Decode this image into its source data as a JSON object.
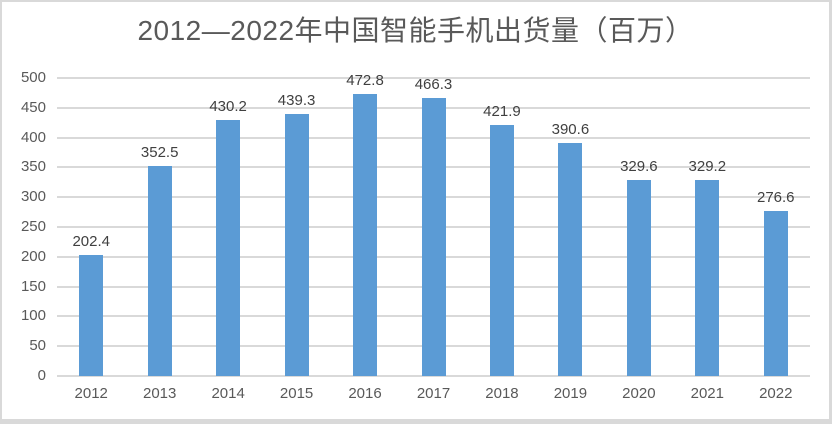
{
  "chart_data": {
    "type": "bar",
    "title": "2012—2022年中国智能手机出货量（百万）",
    "categories": [
      "2012",
      "2013",
      "2014",
      "2015",
      "2016",
      "2017",
      "2018",
      "2019",
      "2020",
      "2021",
      "2022"
    ],
    "values": [
      202.4,
      352.5,
      430.2,
      439.3,
      472.8,
      466.3,
      421.9,
      390.6,
      329.6,
      329.2,
      276.6
    ],
    "value_labels": [
      "202.4",
      "352.5",
      "430.2",
      "439.3",
      "472.8",
      "466.3",
      "421.9",
      "390.6",
      "329.6",
      "329.2",
      "276.6"
    ],
    "xlabel": "",
    "ylabel": "",
    "ylim": [
      0,
      500
    ],
    "yticks": [
      0,
      50,
      100,
      150,
      200,
      250,
      300,
      350,
      400,
      450,
      500
    ],
    "grid": true,
    "legend_position": "none",
    "colors": {
      "bar": "#5B9BD5",
      "gridline": "#D9D9D9",
      "frame_border": "#D9D9D9",
      "title_text": "#595959",
      "axis_text": "#595959",
      "value_text": "#404040",
      "background": "#FFFFFF"
    }
  }
}
